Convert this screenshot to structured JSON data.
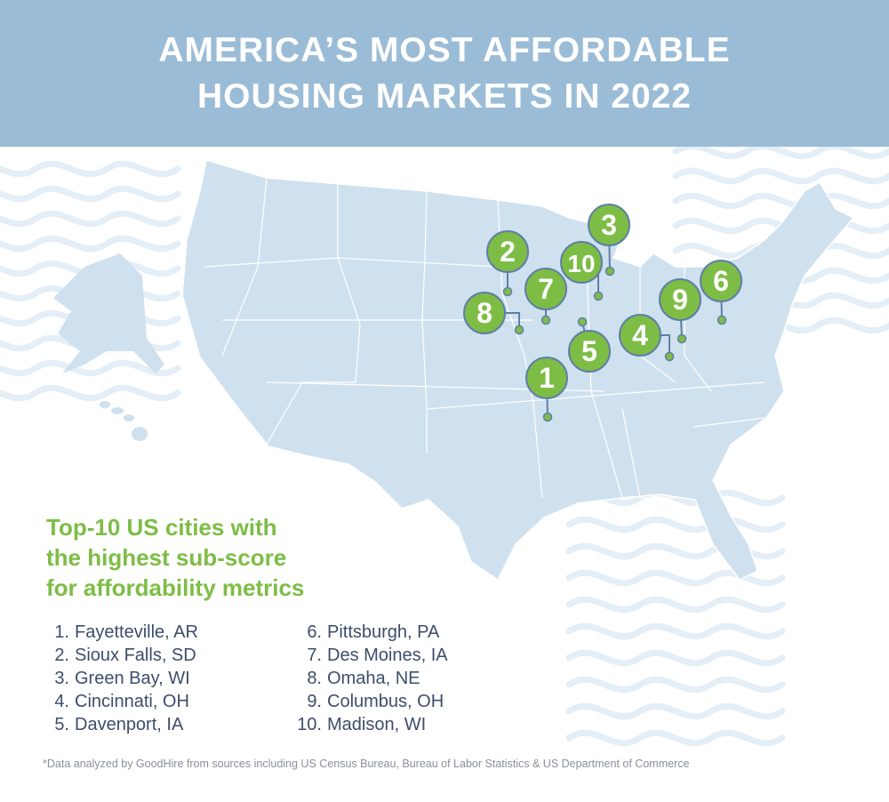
{
  "header": {
    "title_line1": "AMERICA’S MOST AFFORDABLE",
    "title_line2": "HOUSING MARKETS IN 2022"
  },
  "subtitle": {
    "line1": "Top-10 US cities with",
    "line2": "the highest sub-score",
    "line3": "for affordability metrics"
  },
  "cities": [
    {
      "rank": "1.",
      "name": "Fayetteville, AR"
    },
    {
      "rank": "2.",
      "name": "Sioux Falls, SD"
    },
    {
      "rank": "3.",
      "name": "Green Bay, WI"
    },
    {
      "rank": "4.",
      "name": "Cincinnati, OH"
    },
    {
      "rank": "5.",
      "name": "Davenport, IA"
    },
    {
      "rank": "6.",
      "name": "Pittsburgh, PA"
    },
    {
      "rank": "7.",
      "name": "Des Moines, IA"
    },
    {
      "rank": "8.",
      "name": "Omaha, NE"
    },
    {
      "rank": "9.",
      "name": "Columbus, OH"
    },
    {
      "rank": "10.",
      "name": "Madison, WI"
    }
  ],
  "markers": [
    "1",
    "2",
    "3",
    "4",
    "5",
    "6",
    "7",
    "8",
    "9",
    "10"
  ],
  "footnote": "*Data analyzed by GoodHire from sources including US Census Bureau, Bureau of Labor Statistics & US Department of Commerce",
  "colors": {
    "header": "#9bbcd6",
    "map": "#cfe1ef",
    "marker": "#7dbd45",
    "marker_outline": "#5f7ea6",
    "text": "#3e4d6a"
  }
}
